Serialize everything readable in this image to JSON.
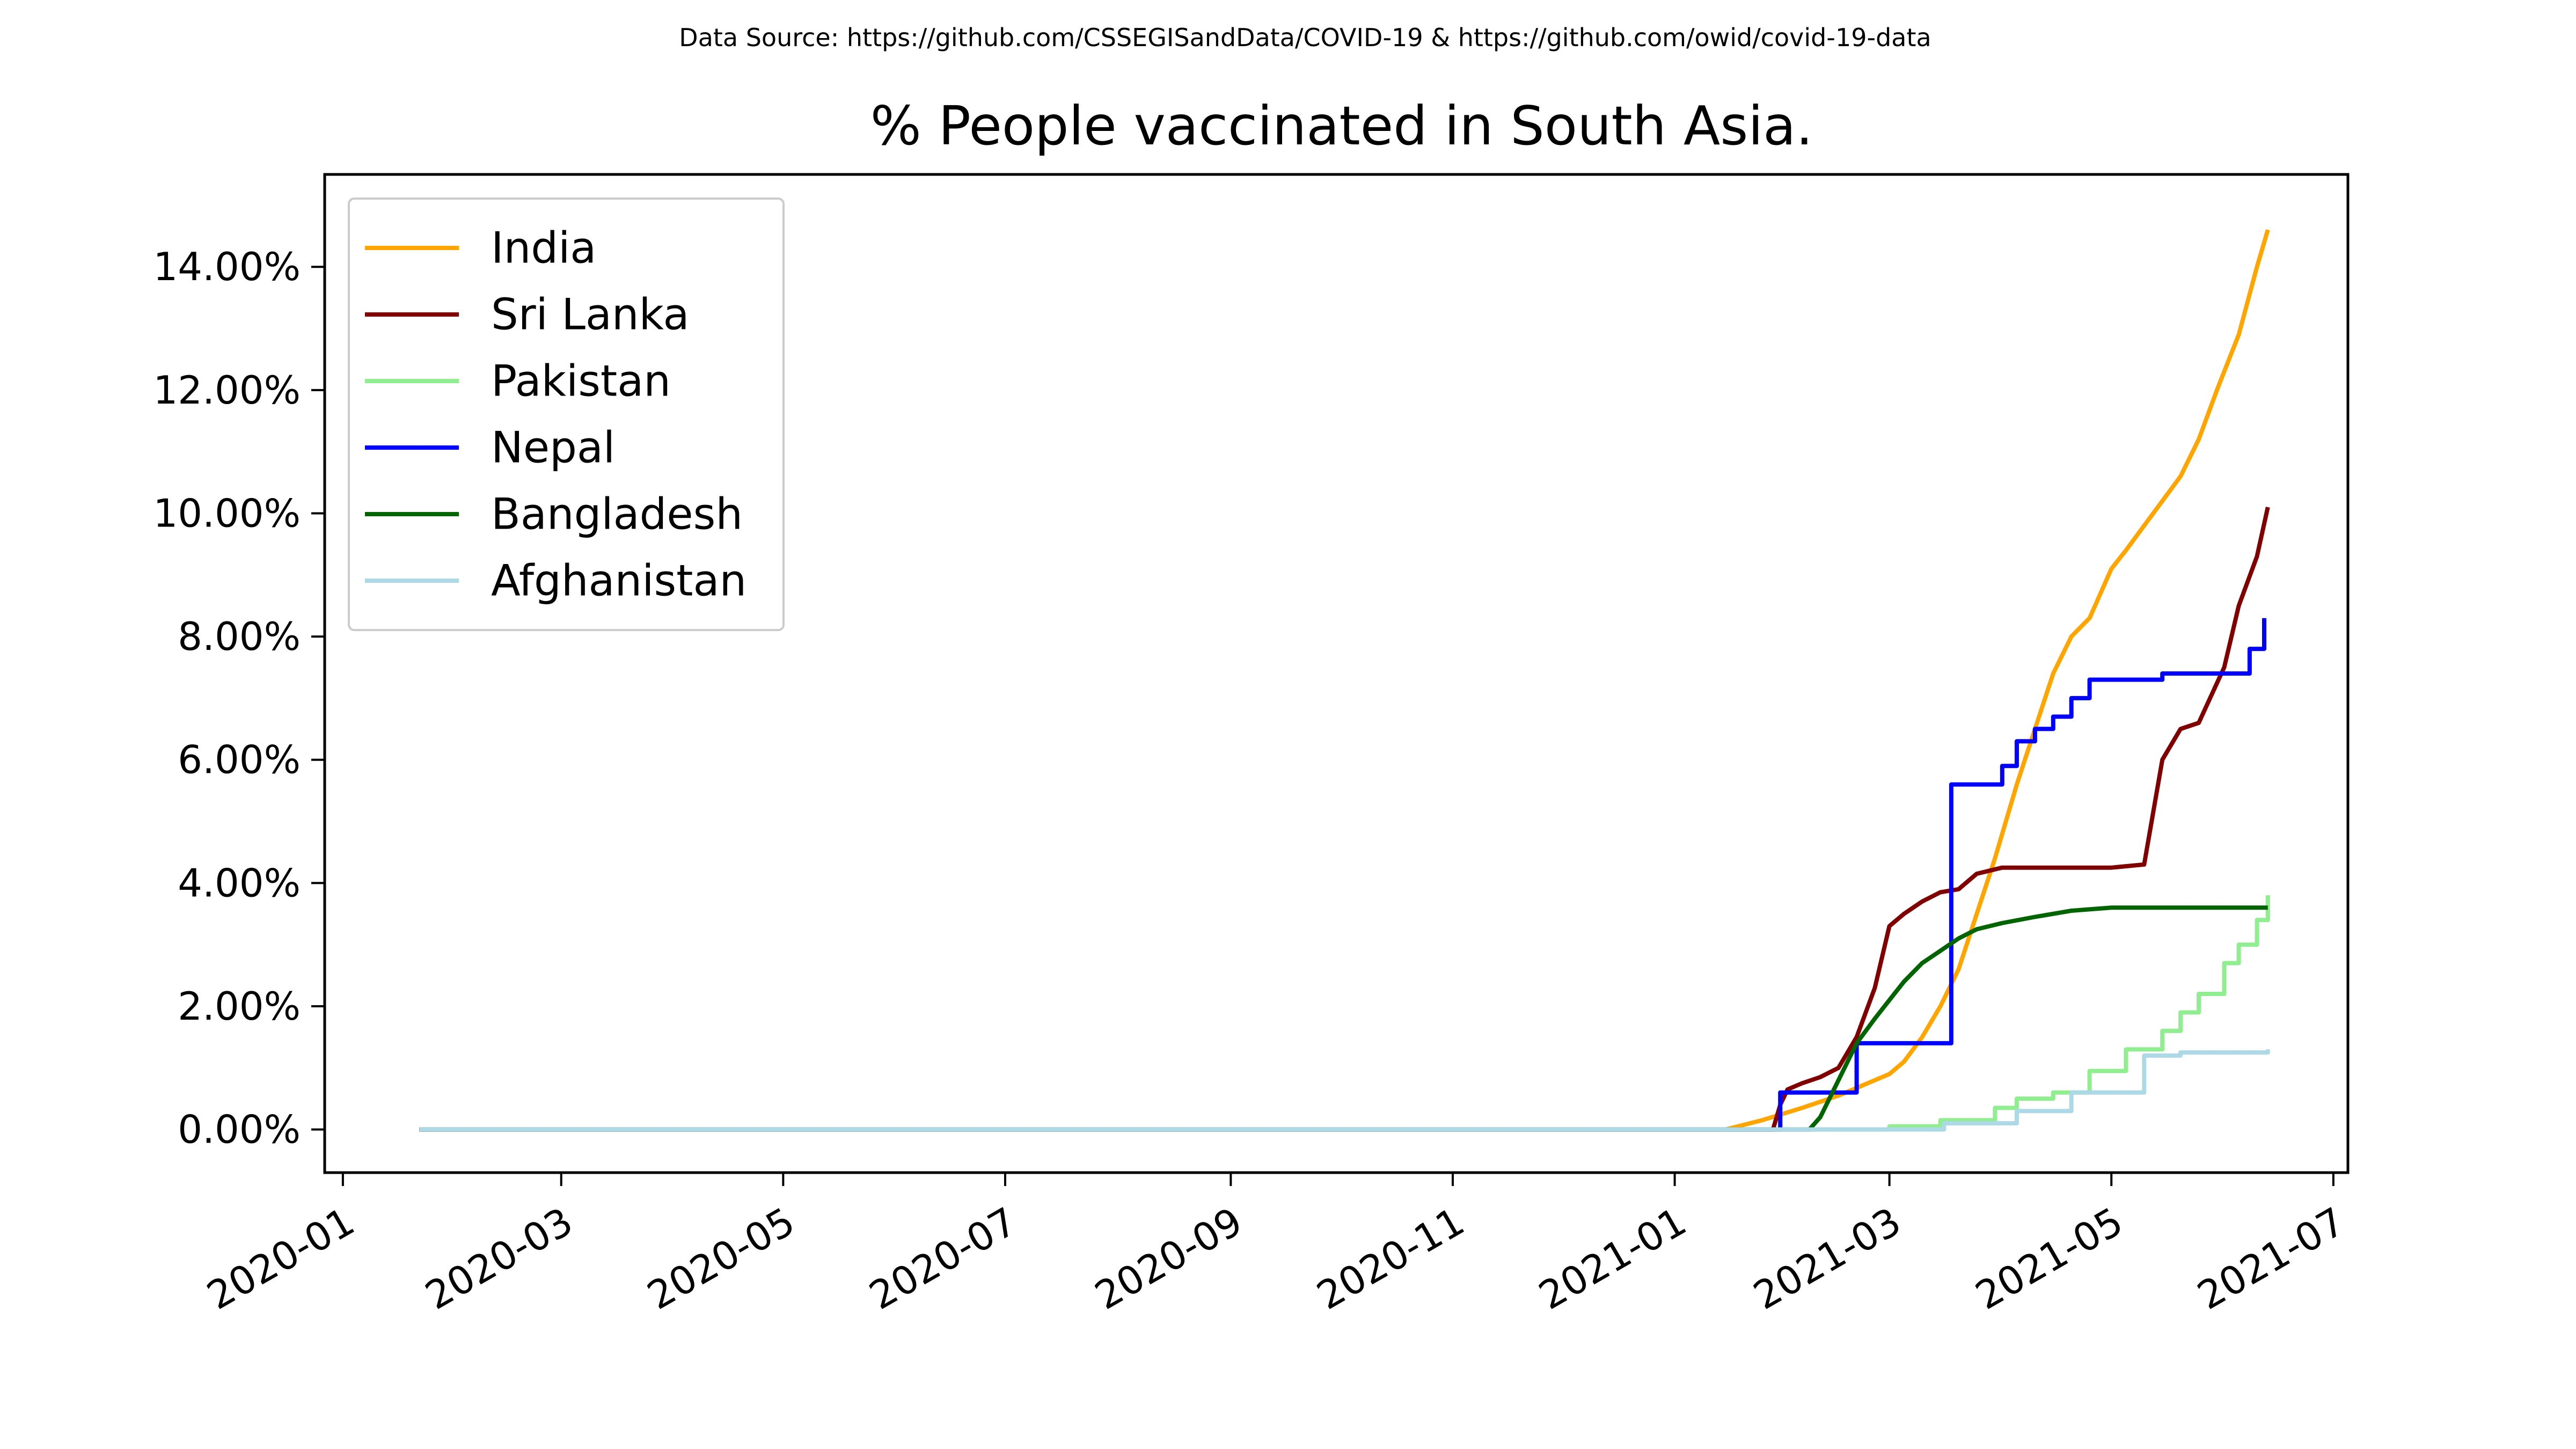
{
  "source_note": "Data Source: https://github.com/CSSEGISandData/COVID-19 & https://github.com/owid/covid-19-data",
  "chart_data": {
    "type": "line",
    "title": "% People vaccinated in South Asia.",
    "xlabel": "",
    "ylabel": "",
    "x_axis": {
      "kind": "date",
      "range": [
        "2019-12-27",
        "2021-07-05"
      ],
      "ticks": [
        "2020-01-01",
        "2020-03-01",
        "2020-05-01",
        "2020-07-01",
        "2020-09-01",
        "2020-11-01",
        "2021-01-01",
        "2021-03-01",
        "2021-05-01",
        "2021-07-01"
      ],
      "tick_labels": [
        "2020-01",
        "2020-03",
        "2020-05",
        "2020-07",
        "2020-09",
        "2020-11",
        "2021-01",
        "2021-03",
        "2021-05",
        "2021-07"
      ]
    },
    "y_axis": {
      "range": [
        -0.7,
        15.5
      ],
      "ticks": [
        0,
        2,
        4,
        6,
        8,
        10,
        12,
        14
      ],
      "tick_labels": [
        "0.00%",
        "2.00%",
        "4.00%",
        "6.00%",
        "8.00%",
        "10.00%",
        "12.00%",
        "14.00%"
      ]
    },
    "grid": false,
    "legend_position": "top-left",
    "series": [
      {
        "name": "India",
        "color": "#ffa500",
        "step": false,
        "points": [
          [
            "2020-01-22",
            0
          ],
          [
            "2021-01-15",
            0
          ],
          [
            "2021-01-25",
            0.15
          ],
          [
            "2021-02-05",
            0.35
          ],
          [
            "2021-02-15",
            0.55
          ],
          [
            "2021-02-25",
            0.8
          ],
          [
            "2021-03-01",
            0.9
          ],
          [
            "2021-03-05",
            1.1
          ],
          [
            "2021-03-10",
            1.5
          ],
          [
            "2021-03-15",
            2.0
          ],
          [
            "2021-03-20",
            2.6
          ],
          [
            "2021-03-25",
            3.5
          ],
          [
            "2021-03-30",
            4.4
          ],
          [
            "2021-04-05",
            5.6
          ],
          [
            "2021-04-10",
            6.5
          ],
          [
            "2021-04-15",
            7.4
          ],
          [
            "2021-04-20",
            8.0
          ],
          [
            "2021-04-25",
            8.3
          ],
          [
            "2021-05-01",
            9.1
          ],
          [
            "2021-05-05",
            9.4
          ],
          [
            "2021-05-10",
            9.8
          ],
          [
            "2021-05-15",
            10.2
          ],
          [
            "2021-05-20",
            10.6
          ],
          [
            "2021-05-25",
            11.2
          ],
          [
            "2021-05-30",
            12.0
          ],
          [
            "2021-06-05",
            12.9
          ],
          [
            "2021-06-10",
            14.0
          ],
          [
            "2021-06-13",
            14.6
          ]
        ]
      },
      {
        "name": "Sri Lanka",
        "color": "#800000",
        "step": false,
        "points": [
          [
            "2020-01-22",
            0
          ],
          [
            "2021-01-28",
            0
          ],
          [
            "2021-01-30",
            0.4
          ],
          [
            "2021-02-01",
            0.65
          ],
          [
            "2021-02-05",
            0.75
          ],
          [
            "2021-02-10",
            0.85
          ],
          [
            "2021-02-15",
            1.0
          ],
          [
            "2021-02-20",
            1.5
          ],
          [
            "2021-02-25",
            2.3
          ],
          [
            "2021-03-01",
            3.3
          ],
          [
            "2021-03-05",
            3.5
          ],
          [
            "2021-03-10",
            3.7
          ],
          [
            "2021-03-15",
            3.85
          ],
          [
            "2021-03-20",
            3.9
          ],
          [
            "2021-03-25",
            4.15
          ],
          [
            "2021-04-01",
            4.25
          ],
          [
            "2021-05-01",
            4.25
          ],
          [
            "2021-05-10",
            4.3
          ],
          [
            "2021-05-15",
            6.0
          ],
          [
            "2021-05-20",
            6.5
          ],
          [
            "2021-05-25",
            6.6
          ],
          [
            "2021-06-01",
            7.5
          ],
          [
            "2021-06-05",
            8.5
          ],
          [
            "2021-06-10",
            9.3
          ],
          [
            "2021-06-13",
            10.1
          ]
        ]
      },
      {
        "name": "Pakistan",
        "color": "#90ee90",
        "step": true,
        "points": [
          [
            "2020-01-22",
            0
          ],
          [
            "2021-02-15",
            0
          ],
          [
            "2021-03-01",
            0.05
          ],
          [
            "2021-03-15",
            0.15
          ],
          [
            "2021-03-30",
            0.35
          ],
          [
            "2021-04-05",
            0.5
          ],
          [
            "2021-04-15",
            0.6
          ],
          [
            "2021-04-25",
            0.95
          ],
          [
            "2021-05-05",
            1.3
          ],
          [
            "2021-05-15",
            1.6
          ],
          [
            "2021-05-20",
            1.9
          ],
          [
            "2021-05-25",
            2.2
          ],
          [
            "2021-06-01",
            2.7
          ],
          [
            "2021-06-05",
            3.0
          ],
          [
            "2021-06-10",
            3.4
          ],
          [
            "2021-06-13",
            3.8
          ]
        ]
      },
      {
        "name": "Nepal",
        "color": "#0000ff",
        "step": true,
        "points": [
          [
            "2020-01-22",
            0
          ],
          [
            "2021-01-27",
            0
          ],
          [
            "2021-01-30",
            0.6
          ],
          [
            "2021-02-20",
            1.4
          ],
          [
            "2021-03-18",
            5.6
          ],
          [
            "2021-04-01",
            5.9
          ],
          [
            "2021-04-05",
            6.3
          ],
          [
            "2021-04-10",
            6.5
          ],
          [
            "2021-04-15",
            6.7
          ],
          [
            "2021-04-20",
            7.0
          ],
          [
            "2021-04-25",
            7.3
          ],
          [
            "2021-05-15",
            7.4
          ],
          [
            "2021-06-08",
            7.8
          ],
          [
            "2021-06-12",
            8.3
          ]
        ]
      },
      {
        "name": "Bangladesh",
        "color": "#006400",
        "step": false,
        "points": [
          [
            "2020-01-22",
            0
          ],
          [
            "2021-02-07",
            0
          ],
          [
            "2021-02-10",
            0.2
          ],
          [
            "2021-02-15",
            0.8
          ],
          [
            "2021-02-20",
            1.4
          ],
          [
            "2021-02-25",
            1.8
          ],
          [
            "2021-03-01",
            2.1
          ],
          [
            "2021-03-05",
            2.4
          ],
          [
            "2021-03-10",
            2.7
          ],
          [
            "2021-03-15",
            2.9
          ],
          [
            "2021-03-20",
            3.1
          ],
          [
            "2021-03-25",
            3.25
          ],
          [
            "2021-04-01",
            3.35
          ],
          [
            "2021-04-10",
            3.45
          ],
          [
            "2021-04-20",
            3.55
          ],
          [
            "2021-05-01",
            3.6
          ],
          [
            "2021-06-13",
            3.6
          ]
        ]
      },
      {
        "name": "Afghanistan",
        "color": "#add8e6",
        "step": true,
        "points": [
          [
            "2020-01-22",
            0
          ],
          [
            "2021-03-15",
            0
          ],
          [
            "2021-03-16",
            0.1
          ],
          [
            "2021-04-05",
            0.3
          ],
          [
            "2021-04-20",
            0.6
          ],
          [
            "2021-05-10",
            1.2
          ],
          [
            "2021-05-20",
            1.25
          ],
          [
            "2021-06-13",
            1.3
          ]
        ]
      }
    ]
  }
}
